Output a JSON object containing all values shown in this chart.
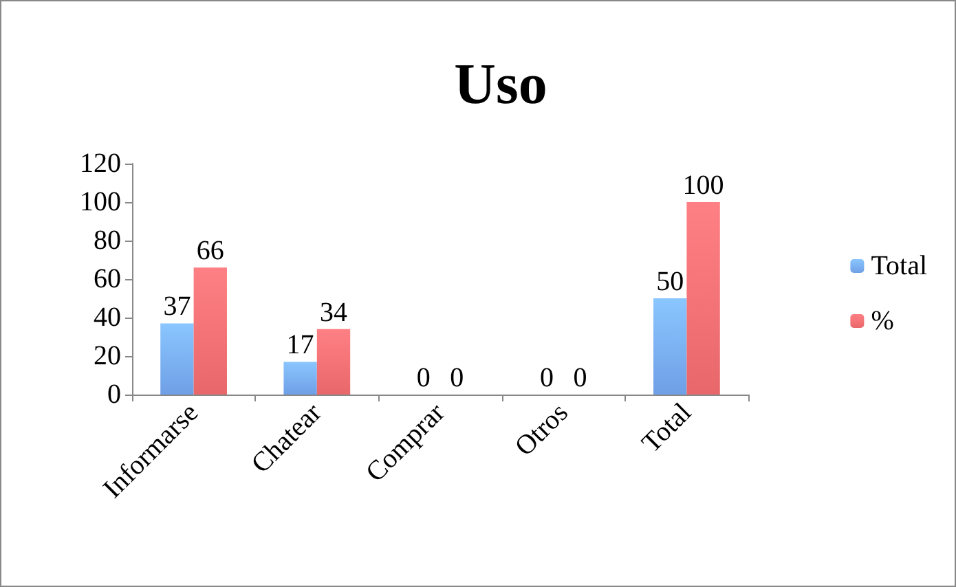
{
  "chart_data": {
    "type": "bar",
    "title": "Uso",
    "categories": [
      "Informarse",
      "Chatear",
      "Comprar",
      "Otros",
      "Total"
    ],
    "series": [
      {
        "name": "Total",
        "color": "#6f9fe6",
        "values": [
          37,
          17,
          0,
          0,
          50
        ]
      },
      {
        "name": "%",
        "color": "#e8676a",
        "values": [
          66,
          34,
          0,
          0,
          100
        ]
      }
    ],
    "ylim": [
      0,
      120
    ],
    "yticks": [
      0,
      20,
      40,
      60,
      80,
      100,
      120
    ],
    "grid": false,
    "legend": "right",
    "data_labels": true
  }
}
